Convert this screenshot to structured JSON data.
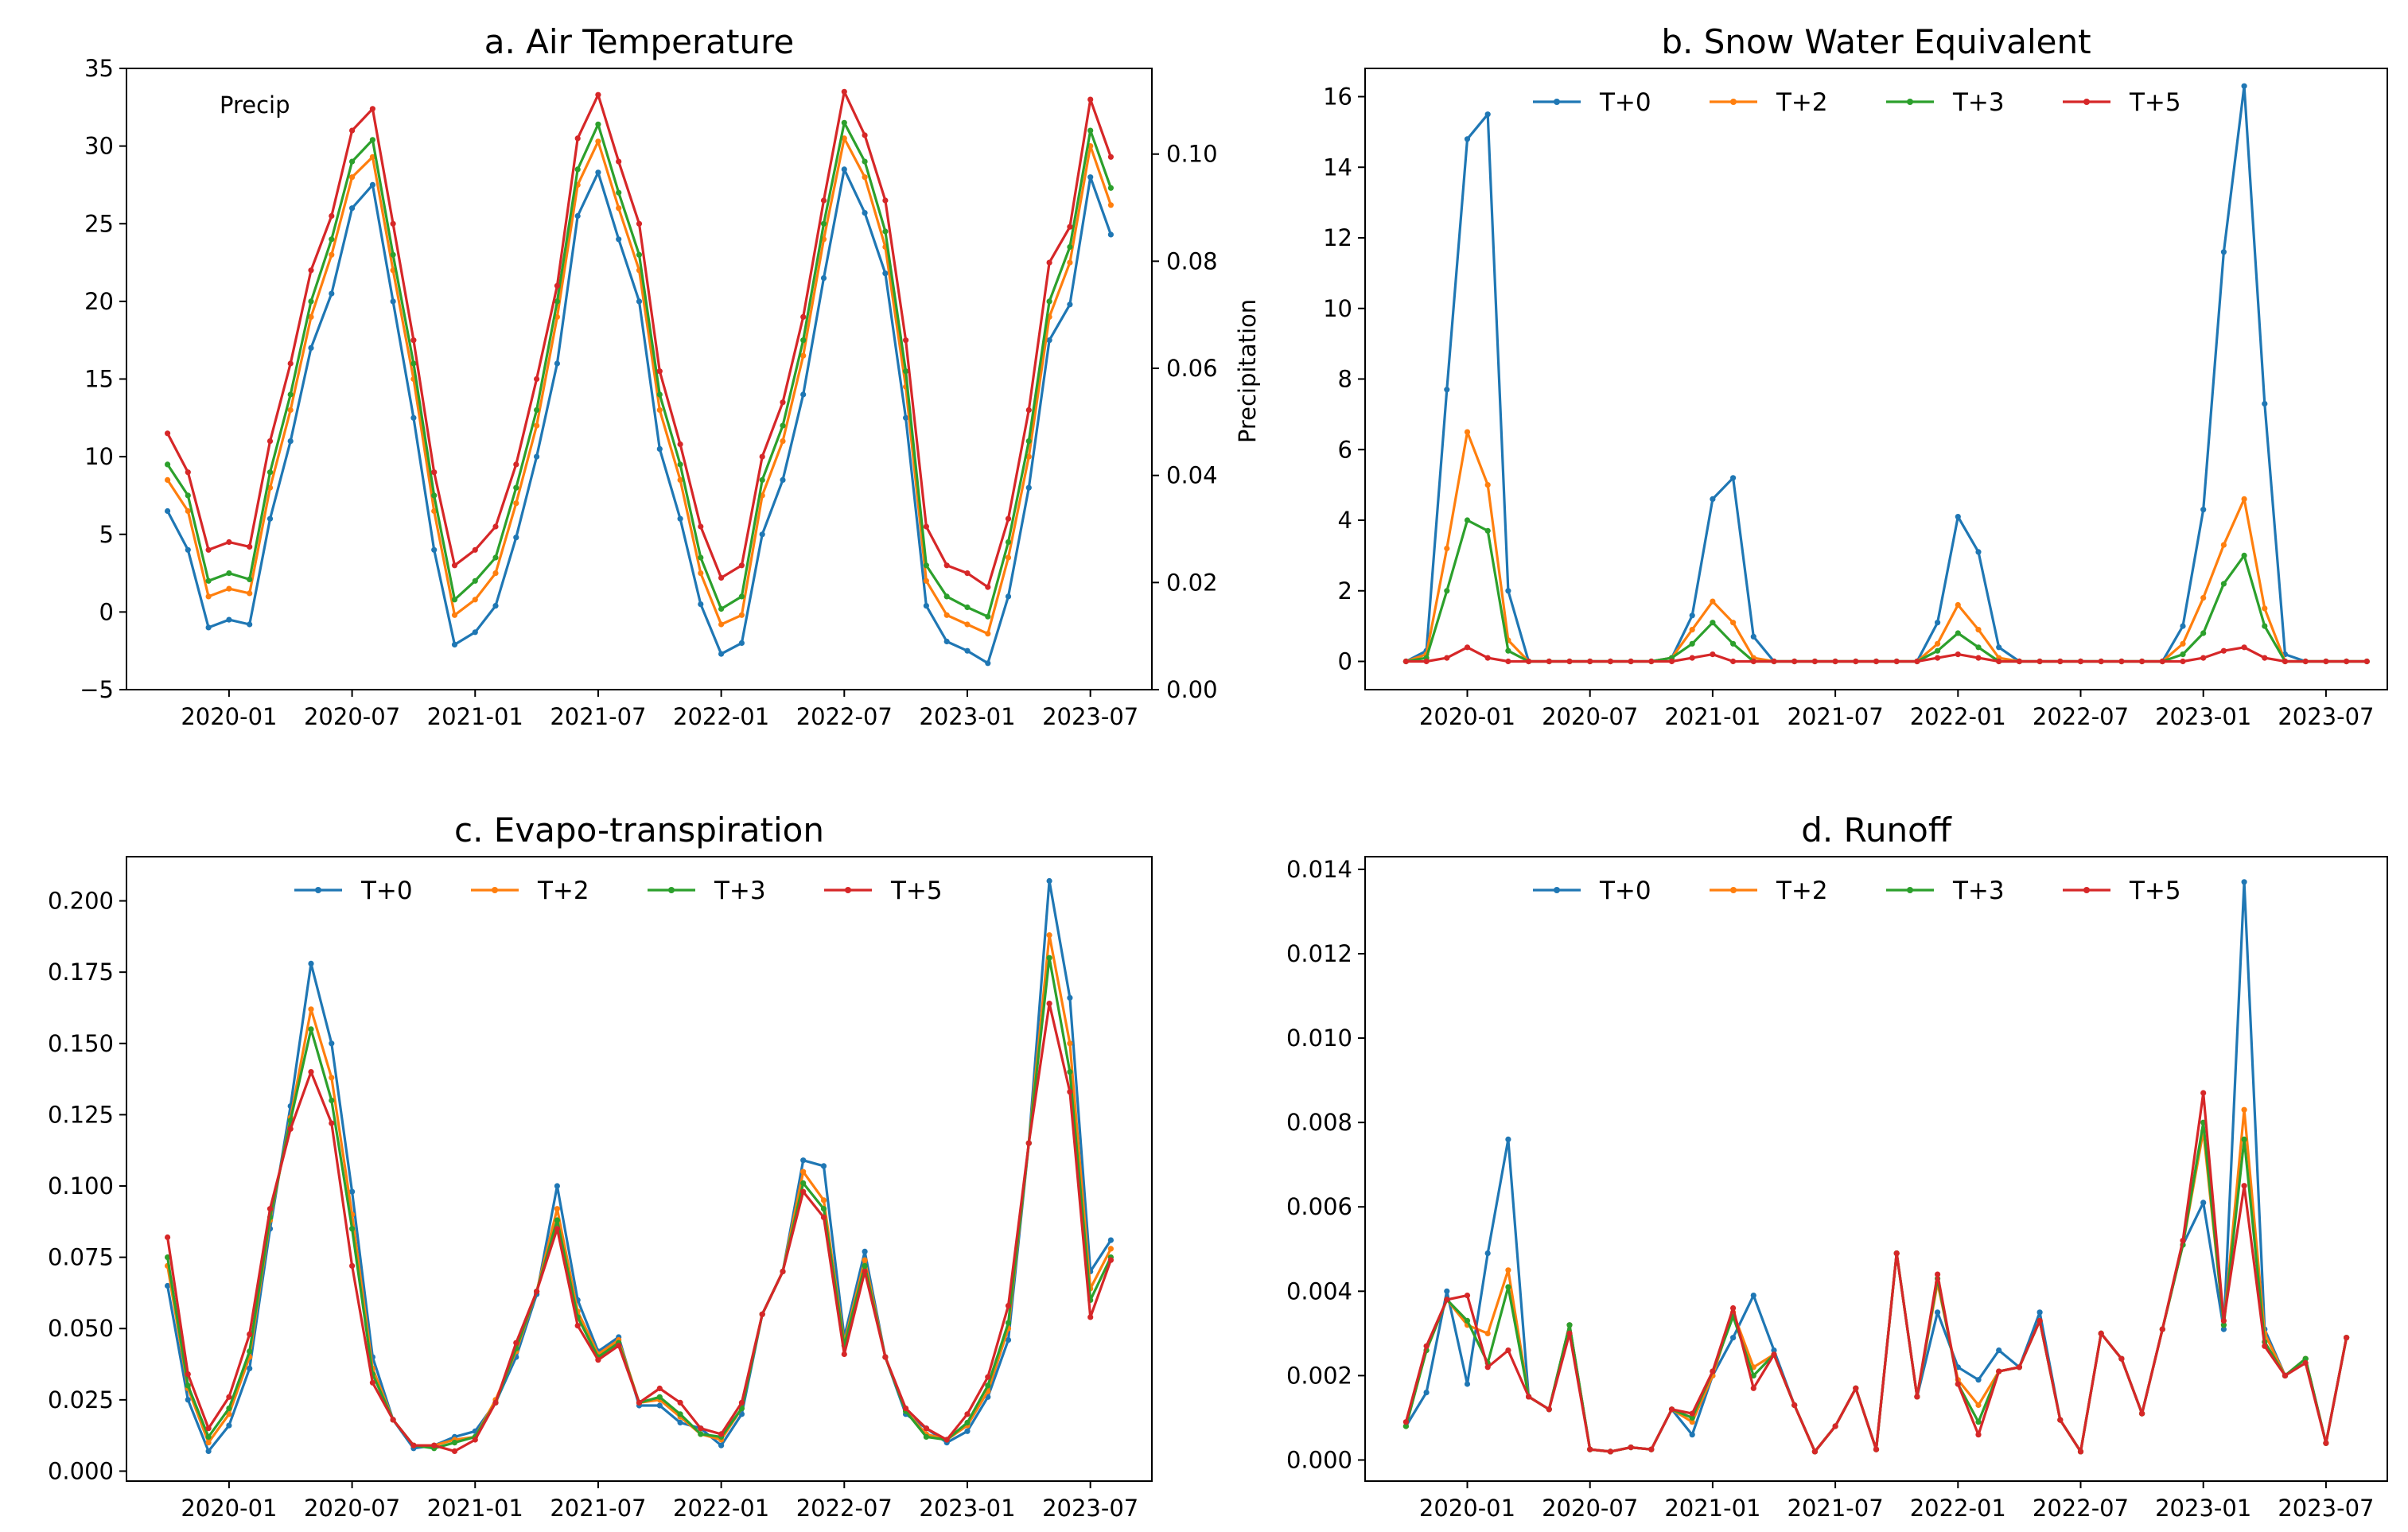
{
  "figure": {
    "title": ""
  },
  "colors": {
    "T+0": "#1f77b4",
    "T+2": "#ff7f0e",
    "T+3": "#2ca02c",
    "T+5": "#d62728"
  },
  "chart_data": [
    {
      "id": "a",
      "type": "line",
      "title": "a. Air Temperature",
      "xlabel": "",
      "ylabel": "",
      "y2label": "Precipitation",
      "annotation": "Precip",
      "x_start": "2019-10",
      "xticks": [
        "2020-01",
        "2020-07",
        "2021-01",
        "2021-07",
        "2022-01",
        "2022-07",
        "2023-01",
        "2023-07"
      ],
      "xtick_index": [
        3,
        9,
        15,
        21,
        27,
        33,
        39,
        45
      ],
      "yticks": [
        "−5",
        "0",
        "5",
        "10",
        "15",
        "20",
        "25",
        "30",
        "35"
      ],
      "ylim": [
        -5,
        35
      ],
      "y2ticks": [
        "0.00",
        "0.02",
        "0.04",
        "0.06",
        "0.08",
        "0.10"
      ],
      "y2lim": [
        0,
        0.116
      ],
      "legend": false,
      "series": [
        {
          "name": "T+0",
          "values": [
            6.5,
            4.0,
            -1.0,
            -0.5,
            -0.8,
            6.0,
            11.0,
            17.0,
            20.5,
            26.0,
            27.5,
            20.0,
            12.5,
            4.0,
            -2.1,
            -1.3,
            0.4,
            4.8,
            10.0,
            16.0,
            25.5,
            28.3,
            24.0,
            20.0,
            10.5,
            6.0,
            0.5,
            -2.7,
            -2.0,
            5.0,
            8.5,
            14.0,
            21.5,
            28.5,
            25.7,
            21.8,
            12.5,
            0.4,
            -1.9,
            -2.5,
            -3.3,
            1.0,
            8.0,
            17.5,
            19.8,
            28.0,
            24.3
          ]
        },
        {
          "name": "T+2",
          "values": [
            8.5,
            6.5,
            1.0,
            1.5,
            1.2,
            8.0,
            13.0,
            19.0,
            23.0,
            28.0,
            29.3,
            22.0,
            15.0,
            6.5,
            -0.2,
            0.8,
            2.5,
            7.0,
            12.0,
            19.0,
            27.5,
            30.3,
            26.0,
            22.0,
            13.0,
            8.5,
            2.5,
            -0.8,
            -0.2,
            7.5,
            11.0,
            16.5,
            24.0,
            30.5,
            28.0,
            23.5,
            14.5,
            2.0,
            -0.2,
            -0.8,
            -1.4,
            3.5,
            10.0,
            19.0,
            22.5,
            30.0,
            26.2
          ]
        },
        {
          "name": "T+3",
          "values": [
            9.5,
            7.5,
            2.0,
            2.5,
            2.1,
            9.0,
            14.0,
            20.0,
            24.0,
            29.0,
            30.4,
            23.0,
            16.0,
            7.5,
            0.8,
            2.0,
            3.5,
            8.0,
            13.0,
            20.0,
            28.5,
            31.4,
            27.0,
            23.0,
            14.0,
            9.5,
            3.5,
            0.2,
            1.0,
            8.5,
            12.0,
            17.5,
            25.0,
            31.5,
            29.0,
            24.5,
            15.5,
            3.0,
            1.0,
            0.3,
            -0.3,
            4.5,
            11.0,
            20.0,
            23.5,
            31.0,
            27.3
          ]
        },
        {
          "name": "T+5",
          "values": [
            11.5,
            9.0,
            4.0,
            4.5,
            4.2,
            11.0,
            16.0,
            22.0,
            25.5,
            31.0,
            32.4,
            25.0,
            17.5,
            9.0,
            3.0,
            4.0,
            5.5,
            9.5,
            15.0,
            21.0,
            30.5,
            33.3,
            29.0,
            25.0,
            15.5,
            10.8,
            5.5,
            2.2,
            3.0,
            10.0,
            13.5,
            19.0,
            26.5,
            33.5,
            30.7,
            26.5,
            17.5,
            5.5,
            3.0,
            2.5,
            1.6,
            6.0,
            13.0,
            22.5,
            24.8,
            33.0,
            29.3
          ]
        }
      ]
    },
    {
      "id": "b",
      "type": "line",
      "title": "b. Snow Water Equivalent",
      "xlabel": "",
      "ylabel": "",
      "x_start": "2019-10",
      "xticks": [
        "2020-01",
        "2020-07",
        "2021-01",
        "2021-07",
        "2022-01",
        "2022-07",
        "2023-01",
        "2023-07"
      ],
      "xtick_index": [
        3,
        9,
        15,
        21,
        27,
        33,
        39,
        45
      ],
      "yticks": [
        "0",
        "2",
        "4",
        "6",
        "8",
        "10",
        "12",
        "14",
        "16"
      ],
      "ylim": [
        -0.8,
        16.8
      ],
      "legend": true,
      "legend_position": "top-center",
      "series": [
        {
          "name": "T+0",
          "values": [
            0.0,
            0.3,
            7.7,
            14.8,
            15.5,
            2.0,
            0,
            0,
            0,
            0,
            0,
            0,
            0,
            0.1,
            1.3,
            4.6,
            5.2,
            0.7,
            0,
            0,
            0,
            0,
            0,
            0,
            0,
            0,
            1.1,
            4.1,
            3.1,
            0.4,
            0,
            0,
            0,
            0,
            0,
            0,
            0,
            0,
            1.0,
            4.3,
            11.6,
            16.3,
            7.3,
            0.2,
            0,
            0,
            0,
            0
          ]
        },
        {
          "name": "T+2",
          "values": [
            0.0,
            0.2,
            3.2,
            6.5,
            5.0,
            0.6,
            0,
            0,
            0,
            0,
            0,
            0,
            0,
            0.1,
            0.9,
            1.7,
            1.1,
            0.1,
            0,
            0,
            0,
            0,
            0,
            0,
            0,
            0,
            0.5,
            1.6,
            0.9,
            0.1,
            0,
            0,
            0,
            0,
            0,
            0,
            0,
            0,
            0.5,
            1.8,
            3.3,
            4.6,
            1.5,
            0.0,
            0,
            0,
            0,
            0
          ]
        },
        {
          "name": "T+3",
          "values": [
            0.0,
            0.1,
            2.0,
            4.0,
            3.7,
            0.3,
            0,
            0,
            0,
            0,
            0,
            0,
            0,
            0.1,
            0.5,
            1.1,
            0.5,
            0.0,
            0,
            0,
            0,
            0,
            0,
            0,
            0,
            0,
            0.3,
            0.8,
            0.4,
            0.0,
            0,
            0,
            0,
            0,
            0,
            0,
            0,
            0,
            0.2,
            0.8,
            2.2,
            3.0,
            1.0,
            0.0,
            0,
            0,
            0,
            0
          ]
        },
        {
          "name": "T+5",
          "values": [
            0.0,
            0.0,
            0.1,
            0.4,
            0.1,
            0.0,
            0,
            0,
            0,
            0,
            0,
            0,
            0,
            0.0,
            0.1,
            0.2,
            0.0,
            0.0,
            0,
            0,
            0,
            0,
            0,
            0,
            0,
            0,
            0.1,
            0.2,
            0.1,
            0.0,
            0,
            0,
            0,
            0,
            0,
            0,
            0,
            0,
            0.0,
            0.1,
            0.3,
            0.4,
            0.1,
            0.0,
            0,
            0,
            0,
            0
          ]
        }
      ]
    },
    {
      "id": "c",
      "type": "line",
      "title": "c. Evapo-transpiration",
      "xlabel": "",
      "ylabel": "",
      "x_start": "2019-10",
      "xticks": [
        "2020-01",
        "2020-07",
        "2021-01",
        "2021-07",
        "2022-01",
        "2022-07",
        "2023-01",
        "2023-07"
      ],
      "xtick_index": [
        3,
        9,
        15,
        21,
        27,
        33,
        39,
        45
      ],
      "yticks": [
        "0.000",
        "0.025",
        "0.050",
        "0.075",
        "0.100",
        "0.125",
        "0.150",
        "0.175",
        "0.200"
      ],
      "ylim": [
        -0.0035,
        0.2155
      ],
      "legend": true,
      "legend_position": "top-center",
      "series": [
        {
          "name": "T+0",
          "values": [
            0.065,
            0.025,
            0.007,
            0.016,
            0.036,
            0.085,
            0.128,
            0.178,
            0.15,
            0.098,
            0.04,
            0.018,
            0.008,
            0.009,
            0.012,
            0.014,
            0.024,
            0.04,
            0.062,
            0.1,
            0.06,
            0.042,
            0.047,
            0.023,
            0.023,
            0.017,
            0.015,
            0.009,
            0.02,
            0.055,
            0.07,
            0.109,
            0.107,
            0.047,
            0.077,
            0.04,
            0.02,
            0.015,
            0.01,
            0.014,
            0.026,
            0.046,
            0.115,
            0.207,
            0.166,
            0.07,
            0.081
          ]
        },
        {
          "name": "T+2",
          "values": [
            0.072,
            0.029,
            0.01,
            0.02,
            0.04,
            0.088,
            0.124,
            0.162,
            0.138,
            0.09,
            0.036,
            0.018,
            0.009,
            0.009,
            0.011,
            0.012,
            0.025,
            0.042,
            0.063,
            0.092,
            0.056,
            0.041,
            0.046,
            0.024,
            0.025,
            0.019,
            0.013,
            0.011,
            0.022,
            0.055,
            0.07,
            0.105,
            0.095,
            0.045,
            0.074,
            0.04,
            0.021,
            0.013,
            0.011,
            0.016,
            0.028,
            0.05,
            0.115,
            0.188,
            0.15,
            0.064,
            0.078
          ]
        },
        {
          "name": "T+3",
          "values": [
            0.075,
            0.03,
            0.012,
            0.022,
            0.042,
            0.089,
            0.123,
            0.155,
            0.13,
            0.085,
            0.034,
            0.018,
            0.009,
            0.008,
            0.01,
            0.012,
            0.024,
            0.043,
            0.063,
            0.088,
            0.054,
            0.04,
            0.045,
            0.024,
            0.026,
            0.02,
            0.013,
            0.012,
            0.022,
            0.055,
            0.07,
            0.101,
            0.092,
            0.044,
            0.072,
            0.04,
            0.021,
            0.012,
            0.011,
            0.017,
            0.03,
            0.052,
            0.115,
            0.18,
            0.14,
            0.06,
            0.075
          ]
        },
        {
          "name": "T+5",
          "values": [
            0.082,
            0.034,
            0.015,
            0.026,
            0.048,
            0.092,
            0.12,
            0.14,
            0.122,
            0.072,
            0.031,
            0.018,
            0.009,
            0.009,
            0.007,
            0.011,
            0.024,
            0.045,
            0.063,
            0.085,
            0.051,
            0.039,
            0.044,
            0.024,
            0.029,
            0.024,
            0.015,
            0.013,
            0.024,
            0.055,
            0.07,
            0.098,
            0.089,
            0.041,
            0.07,
            0.04,
            0.022,
            0.015,
            0.011,
            0.02,
            0.033,
            0.058,
            0.115,
            0.164,
            0.133,
            0.054,
            0.074
          ]
        }
      ]
    },
    {
      "id": "d",
      "type": "line",
      "title": "d. Runoff",
      "xlabel": "",
      "ylabel": "",
      "x_start": "2019-10",
      "xticks": [
        "2020-01",
        "2020-07",
        "2021-01",
        "2021-07",
        "2022-01",
        "2022-07",
        "2023-01",
        "2023-07"
      ],
      "xtick_index": [
        3,
        9,
        15,
        21,
        27,
        33,
        39,
        45
      ],
      "yticks": [
        "0.000",
        "0.002",
        "0.004",
        "0.006",
        "0.008",
        "0.010",
        "0.012",
        "0.014"
      ],
      "ylim": [
        -0.0005,
        0.0143
      ],
      "legend": true,
      "legend_position": "top-center",
      "series": [
        {
          "name": "T+0",
          "values": [
            0.0008,
            0.0016,
            0.004,
            0.0018,
            0.0049,
            0.0076,
            0.0015,
            0.0012,
            0.0032,
            0.00025,
            0.0002,
            0.0003,
            0.00025,
            0.0012,
            0.0006,
            0.002,
            0.0029,
            0.0039,
            0.0026,
            0.0013,
            0.0002,
            0.0008,
            0.0017,
            0.00025,
            0.0049,
            0.0015,
            0.0035,
            0.0022,
            0.0019,
            0.0026,
            0.0022,
            0.0035,
            0.00095,
            0.0002,
            0.003,
            0.0024,
            0.0011,
            0.0031,
            0.0051,
            0.0061,
            0.0031,
            0.0137,
            0.0031,
            0.002,
            0.0024,
            0.0004,
            0.0029
          ]
        },
        {
          "name": "T+2",
          "values": [
            0.0008,
            0.0026,
            0.0038,
            0.0032,
            0.003,
            0.0045,
            0.0015,
            0.0012,
            0.0032,
            0.00025,
            0.0002,
            0.0003,
            0.00025,
            0.0012,
            0.0009,
            0.002,
            0.0035,
            0.0022,
            0.0025,
            0.0013,
            0.0002,
            0.0008,
            0.0017,
            0.00025,
            0.0049,
            0.0015,
            0.0042,
            0.0019,
            0.0013,
            0.0021,
            0.0022,
            0.0033,
            0.00095,
            0.0002,
            0.003,
            0.0024,
            0.0011,
            0.0031,
            0.0051,
            0.0078,
            0.0032,
            0.0083,
            0.003,
            0.002,
            0.0024,
            0.0004,
            0.0029
          ]
        },
        {
          "name": "T+3",
          "values": [
            0.0008,
            0.0026,
            0.0038,
            0.0033,
            0.0023,
            0.0041,
            0.0015,
            0.0012,
            0.0032,
            0.00025,
            0.0002,
            0.0003,
            0.00025,
            0.0012,
            0.001,
            0.0021,
            0.0034,
            0.002,
            0.0025,
            0.0013,
            0.0002,
            0.0008,
            0.0017,
            0.00025,
            0.0049,
            0.0015,
            0.0043,
            0.0018,
            0.0009,
            0.0021,
            0.0022,
            0.0033,
            0.00095,
            0.0002,
            0.003,
            0.0024,
            0.0011,
            0.0031,
            0.0051,
            0.008,
            0.0032,
            0.0076,
            0.0028,
            0.002,
            0.0024,
            0.0004,
            0.0029
          ]
        },
        {
          "name": "T+5",
          "values": [
            0.0009,
            0.0027,
            0.0038,
            0.0039,
            0.0022,
            0.0026,
            0.0015,
            0.0012,
            0.003,
            0.00025,
            0.0002,
            0.0003,
            0.00025,
            0.0012,
            0.0011,
            0.0021,
            0.0036,
            0.0017,
            0.0025,
            0.0013,
            0.0002,
            0.0008,
            0.0017,
            0.00025,
            0.0049,
            0.0015,
            0.0044,
            0.0018,
            0.0006,
            0.0021,
            0.0022,
            0.0033,
            0.00095,
            0.0002,
            0.003,
            0.0024,
            0.0011,
            0.0031,
            0.0052,
            0.0087,
            0.0033,
            0.0065,
            0.0027,
            0.002,
            0.0023,
            0.0004,
            0.0029
          ]
        }
      ]
    }
  ]
}
